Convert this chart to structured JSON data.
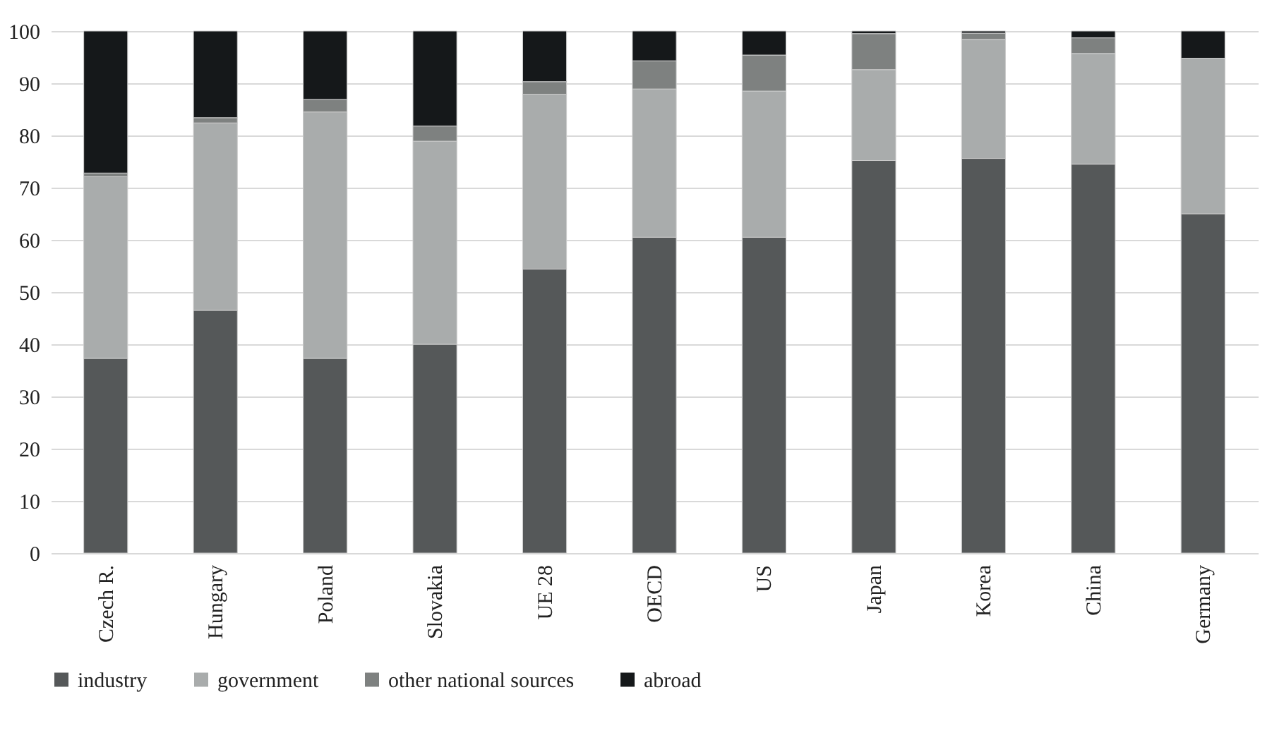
{
  "chart_data": {
    "type": "bar",
    "stacked": true,
    "categories": [
      "Czech R.",
      "Hungary",
      "Poland",
      "Slovakia",
      "UE 28",
      "OECD",
      "US",
      "Japan",
      "Korea",
      "China",
      "Germany"
    ],
    "series": [
      {
        "name": "industry",
        "color": "#555859",
        "values": [
          37.3,
          46.5,
          37.3,
          40.0,
          54.4,
          60.5,
          60.5,
          75.2,
          75.6,
          74.5,
          65.0
        ]
      },
      {
        "name": "government",
        "color": "#a9acac",
        "values": [
          34.8,
          35.9,
          47.2,
          38.9,
          33.5,
          28.4,
          28.0,
          17.4,
          22.8,
          21.2,
          29.8
        ]
      },
      {
        "name": "other national sources",
        "color": "#7e8180",
        "values": [
          0.7,
          1.0,
          2.4,
          2.9,
          2.4,
          5.4,
          6.9,
          6.9,
          1.2,
          3.0,
          null
        ]
      },
      {
        "name": "abroad",
        "color": "#15181a",
        "values": [
          27.2,
          16.6,
          13.1,
          18.2,
          9.7,
          5.7,
          4.6,
          0.5,
          0.4,
          1.3,
          5.2
        ]
      }
    ],
    "ylim": [
      0,
      100
    ],
    "yticks": [
      0,
      10,
      20,
      30,
      40,
      50,
      60,
      70,
      80,
      90,
      100
    ],
    "grid": "y",
    "legend": "bottom"
  }
}
